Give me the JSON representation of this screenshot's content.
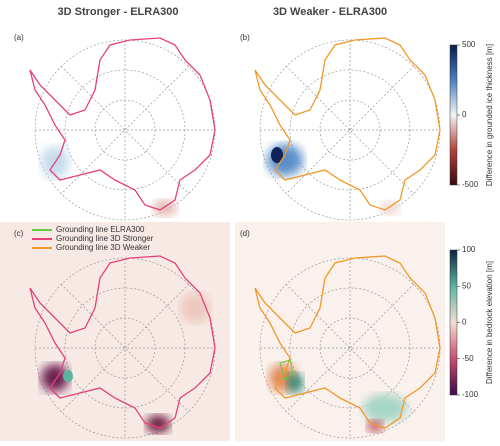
{
  "columns": [
    "3D Stronger - ELRA300",
    "3D Weaker - ELRA300"
  ],
  "panels": [
    "(a)",
    "(b)",
    "(c)",
    "(d)"
  ],
  "legend": [
    {
      "name": "Grounding line ELRA300",
      "color": "#5dcc3f"
    },
    {
      "name": "Grounding line 3D Stronger",
      "color": "#e6407c"
    },
    {
      "name": "Grounding line 3D Weaker",
      "color": "#f0982a"
    }
  ],
  "colorbars": [
    {
      "label": "Difference in grounded ice thickness [m]",
      "lim": [
        -500,
        500
      ],
      "ticks": [
        -500,
        0,
        500
      ],
      "colors": [
        "#3b0a12",
        "#b2423c",
        "#f4f4f4",
        "#4a80c0",
        "#0b1a4a"
      ]
    },
    {
      "label": "Difference in bedrock elevation [m]",
      "lim": [
        -100,
        100
      ],
      "ticks": [
        -100,
        -50,
        0,
        50,
        100
      ],
      "colors": [
        "#3d0a47",
        "#c74f6f",
        "#f3ddd4",
        "#5cb3a0",
        "#0e2440"
      ]
    }
  ]
}
